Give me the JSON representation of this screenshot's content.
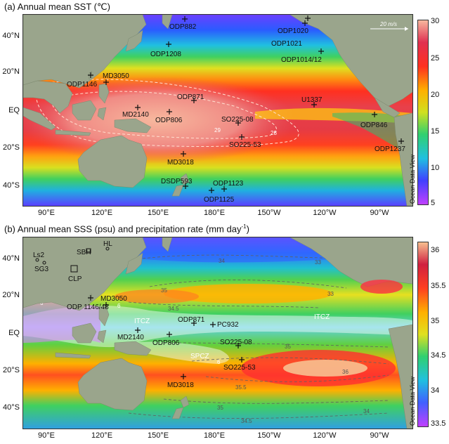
{
  "panel_a": {
    "title": "(a) Annual mean SST (℃)",
    "lat_labels": [
      "40°N",
      "20°N",
      "EQ",
      "20°S",
      "40°S"
    ],
    "lon_labels": [
      "90°E",
      "120°E",
      "150°E",
      "180°E",
      "150°W",
      "120°W",
      "90°W"
    ],
    "colorbar_ticks": [
      "30",
      "25",
      "20",
      "15",
      "10",
      "5"
    ],
    "wind_scale_label": "20 m/s",
    "odv_label": "Ocean Data View",
    "contour_labels": [
      "29",
      "28"
    ],
    "sites": [
      "ODP882",
      "ODP1020",
      "ODP1021",
      "ODP1014/12",
      "ODP1208",
      "MD3050",
      "ODP1146",
      "ODP871",
      "U1337",
      "MD2140",
      "ODP806",
      "SO225-08",
      "ODP846",
      "SO225-53",
      "ODP1237",
      "MD3018",
      "DSDP593",
      "ODP1123",
      "ODP1125"
    ]
  },
  "panel_b": {
    "title": "(b) Annual mean SSS (psu) and precipitation rate (mm day",
    "title_sup": "-1",
    "title_end": ")",
    "lat_labels": [
      "40°N",
      "20°N",
      "EQ",
      "20°S",
      "40°S"
    ],
    "lon_labels": [
      "90°E",
      "120°E",
      "150°E",
      "180°E",
      "150°W",
      "120°W",
      "90°W"
    ],
    "colorbar_ticks": [
      "36",
      "35.5",
      "35",
      "34.5",
      "34",
      "33.5"
    ],
    "odv_label": "Ocean Data View",
    "region_labels": [
      "ITCZ",
      "ITCZ",
      "SPCZ"
    ],
    "contour_labels": [
      "34",
      "33",
      "35",
      "34.5",
      "33",
      "35",
      "36",
      "35.5",
      "35",
      "34.5",
      "34",
      "6",
      "6",
      "6"
    ],
    "sites": [
      "Ls2",
      "SBH",
      "HL",
      "SG3",
      "CLP",
      "MD3050",
      "ODP 1146/48",
      "ODP871",
      "PC932",
      "MD2140",
      "ODP806",
      "SO225-08",
      "SO225-53",
      "MD3018"
    ]
  },
  "colors": {
    "land": "#9aa58c",
    "sst_scale": [
      "#c040ff",
      "#4040ff",
      "#20c0e0",
      "#30d070",
      "#d0e020",
      "#ffb000",
      "#ff3020",
      "#e03050",
      "#f7b89e"
    ],
    "sss_scale": [
      "#c040ff",
      "#4060ff",
      "#20c0e0",
      "#30d070",
      "#e0e020",
      "#ffb000",
      "#ff4020",
      "#d02040",
      "#f7c090"
    ]
  }
}
